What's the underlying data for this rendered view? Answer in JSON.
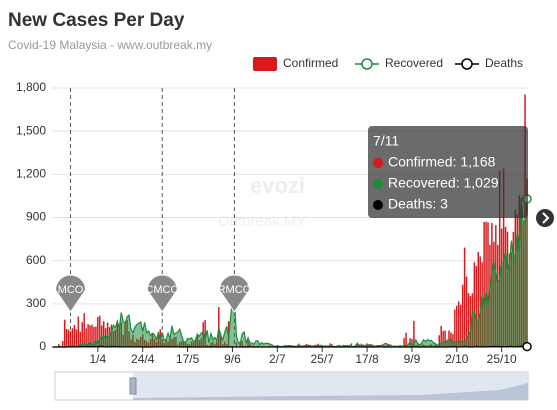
{
  "chart_data": {
    "type": "bar",
    "title": "New Cases Per Day",
    "subtitle": "Covid-19 Malaysia - www.outbreak.my",
    "watermark": [
      "evozi",
      "Outbreak.MY"
    ],
    "categories": [
      null,
      null,
      null,
      null,
      null,
      null,
      null,
      null,
      null,
      null,
      null,
      null,
      null,
      null,
      null,
      null,
      null,
      null,
      null,
      null,
      null,
      null,
      null,
      "1/4",
      null,
      null,
      null,
      null,
      null,
      null,
      null,
      null,
      null,
      null,
      null,
      null,
      null,
      null,
      null,
      null,
      null,
      null,
      null,
      null,
      null,
      null,
      "24/4",
      null,
      null,
      null,
      null,
      null,
      null,
      null,
      null,
      null,
      null,
      null,
      null,
      null,
      null,
      null,
      null,
      null,
      null,
      null,
      null,
      null,
      null,
      "17/5",
      null,
      null,
      null,
      null,
      null,
      null,
      null,
      null,
      null,
      null,
      null,
      null,
      null,
      null,
      null,
      null,
      null,
      null,
      null,
      null,
      null,
      null,
      "9/6",
      null,
      null,
      null,
      null,
      null,
      null,
      null,
      null,
      null,
      null,
      null,
      null,
      null,
      null,
      null,
      null,
      null,
      null,
      null,
      null,
      null,
      null,
      "2/7",
      null,
      null,
      null,
      null,
      null,
      null,
      null,
      null,
      null,
      null,
      null,
      null,
      null,
      null,
      null,
      null,
      null,
      null,
      null,
      null,
      null,
      null,
      "25/7",
      null,
      null,
      null,
      null,
      null,
      null,
      null,
      null,
      null,
      null,
      null,
      null,
      null,
      null,
      null,
      null,
      null,
      null,
      null,
      null,
      null,
      null,
      "17/8",
      null,
      null,
      null,
      null,
      null,
      null,
      null,
      null,
      null,
      null,
      null,
      null,
      null,
      null,
      null,
      null,
      null,
      null,
      null,
      null,
      null,
      null,
      "9/9",
      null,
      null,
      null,
      null,
      null,
      null,
      null,
      null,
      null,
      null,
      null,
      null,
      null,
      null,
      null,
      null,
      null,
      null,
      null,
      null,
      null,
      null,
      "2/10",
      null,
      null,
      null,
      null,
      null,
      null,
      null,
      null,
      null,
      null,
      null,
      null,
      null,
      null,
      null,
      null,
      null,
      null,
      null,
      null,
      null,
      null,
      "25/10",
      null,
      null,
      null,
      null,
      null,
      null,
      null,
      null,
      null,
      null,
      null,
      null,
      null
    ],
    "series": [
      {
        "name": "Confirmed",
        "type": "bar",
        "color": "#d7191c",
        "values": [
          0,
          1,
          0,
          20,
          9,
          41,
          190,
          125,
          120,
          110,
          130,
          153,
          123,
          212,
          106,
          172,
          235,
          130,
          159,
          150,
          156,
          140,
          142,
          208,
          217,
          150,
          179,
          131,
          170,
          138,
          156,
          109,
          118,
          184,
          153,
          170,
          85,
          170,
          187,
          110,
          54,
          84,
          36,
          57,
          50,
          71,
          88,
          51,
          40,
          31,
          57,
          94,
          57,
          36,
          105,
          122,
          55,
          30,
          57,
          39,
          68,
          54,
          67,
          70,
          16,
          37,
          40,
          36,
          39,
          22,
          17,
          37,
          31,
          50,
          78,
          48,
          60,
          172,
          187,
          15,
          10,
          30,
          38,
          20,
          38,
          277,
          93,
          19,
          37,
          19,
          179,
          7,
          8,
          2,
          31,
          4,
          37,
          41,
          8,
          10,
          41,
          21,
          11,
          7,
          6,
          11,
          4,
          6,
          4,
          4,
          3,
          10,
          4,
          0,
          4,
          11,
          3,
          3,
          10,
          14,
          6,
          8,
          13,
          10,
          6,
          7,
          23,
          9,
          8,
          10,
          21,
          15,
          15,
          9,
          13,
          13,
          23,
          13,
          13,
          6,
          2,
          11,
          25,
          20,
          3,
          7,
          12,
          15,
          6,
          15,
          14,
          13,
          15,
          25,
          6,
          15,
          19,
          18,
          23,
          11,
          7,
          25,
          20,
          13,
          16,
          10,
          6,
          12,
          12,
          17,
          10,
          10,
          21,
          2,
          8,
          3,
          7,
          5,
          8,
          9,
          62,
          100,
          5,
          61,
          56,
          182,
          14,
          18,
          8,
          16,
          17,
          12,
          9,
          17,
          18,
          10,
          19,
          13,
          82,
          147,
          111,
          115,
          52,
          115,
          101,
          89,
          260,
          287,
          317,
          293,
          432,
          691,
          489,
          375,
          354,
          374,
          589,
          563,
          660,
          629,
          589,
          869,
          871,
          865,
          710,
          862,
          732,
          847,
          710,
          1228,
          823,
          1240,
          835,
          801,
          649,
          659,
          799,
          957,
          922,
          1054,
          1032,
          869,
          1755,
          1168
        ]
      },
      {
        "name": "Recovered",
        "type": "line",
        "color": "#1e8a3e",
        "values": [
          0,
          0,
          1,
          3,
          2,
          0,
          0,
          0,
          5,
          12,
          14,
          1,
          4,
          8,
          21,
          12,
          25,
          20,
          12,
          34,
          13,
          24,
          44,
          20,
          54,
          72,
          66,
          79,
          58,
          82,
          102,
          152,
          135,
          178,
          128,
          240,
          180,
          162,
          210,
          222,
          122,
          100,
          139,
          157,
          165,
          173,
          108,
          171,
          99,
          111,
          79,
          96,
          86,
          54,
          95,
          48,
          102,
          45,
          55,
          96,
          61,
          148,
          88,
          96,
          106,
          124,
          77,
          37,
          30,
          60,
          54,
          64,
          37,
          47,
          90,
          74,
          96,
          105,
          54,
          117,
          30,
          93,
          51,
          67,
          43,
          134,
          82,
          49,
          100,
          143,
          61,
          198,
          334,
          337,
          79,
          31,
          25,
          93,
          104,
          27,
          64,
          27,
          29,
          18,
          41,
          43,
          16,
          30,
          20,
          25,
          26,
          21,
          16,
          8,
          3,
          9,
          4,
          4,
          1,
          7,
          7,
          10,
          5,
          7,
          4,
          5,
          13,
          7,
          6,
          10,
          9,
          11,
          5,
          4,
          8,
          12,
          3,
          12,
          2,
          6,
          7,
          1,
          8,
          2,
          5,
          2,
          8,
          1,
          5,
          11,
          1,
          7,
          3,
          5,
          1,
          6,
          27,
          7,
          8,
          13,
          11,
          13,
          12,
          17,
          6,
          4,
          10,
          10,
          11,
          13,
          23,
          24,
          6,
          15,
          3,
          7,
          4,
          5,
          9,
          3,
          9,
          9,
          15,
          33,
          14,
          20,
          49,
          24,
          15,
          27,
          50,
          38,
          51,
          44,
          45,
          29,
          25,
          7,
          27,
          28,
          31,
          38,
          40,
          40,
          60,
          24,
          37,
          36,
          39,
          43,
          41,
          41,
          55,
          81,
          109,
          249,
          238,
          181,
          191,
          240,
          365,
          278,
          385,
          292,
          396,
          510,
          596,
          526,
          443,
          469,
          583,
          589,
          662,
          530,
          584,
          739,
          621,
          641,
          806,
          640,
          1036,
          862,
          879,
          1029
        ]
      },
      {
        "name": "Deaths",
        "type": "line",
        "color": "#000000",
        "values": [
          0,
          0,
          0,
          0,
          0,
          0,
          0,
          0,
          2,
          0,
          1,
          1,
          0,
          2,
          4,
          3,
          1,
          4,
          2,
          3,
          2,
          4,
          3,
          2,
          5,
          5,
          2,
          0,
          2,
          1,
          3,
          4,
          3,
          1,
          3,
          0,
          1,
          1,
          1,
          3,
          1,
          0,
          1,
          1,
          1,
          2,
          0,
          0,
          1,
          0,
          0,
          0,
          1,
          1,
          2,
          1,
          1,
          3,
          1,
          0,
          1,
          2,
          0,
          1,
          1,
          0,
          0,
          1,
          0,
          1,
          0,
          1,
          0,
          0,
          0,
          0,
          0,
          0,
          0,
          0,
          0,
          1,
          0,
          0,
          0,
          0,
          0,
          0,
          0,
          1,
          0,
          0,
          0,
          0,
          0,
          0,
          0,
          1,
          0,
          0,
          1,
          0,
          0,
          0,
          0,
          0,
          0,
          0,
          0,
          0,
          0,
          0,
          0,
          0,
          0,
          0,
          0,
          0,
          0,
          0,
          1,
          0,
          0,
          0,
          1,
          0,
          0,
          0,
          0,
          0,
          0,
          0,
          0,
          0,
          0,
          0,
          0,
          0,
          0,
          0,
          0,
          0,
          0,
          0,
          0,
          0,
          0,
          0,
          0,
          0,
          0,
          0,
          0,
          0,
          0,
          0,
          0,
          0,
          0,
          0,
          0,
          0,
          0,
          0,
          0,
          0,
          1,
          0,
          1,
          0,
          0,
          0,
          0,
          0,
          0,
          0,
          0,
          0,
          0,
          0,
          0,
          1,
          0,
          0,
          0,
          0,
          0,
          0,
          0,
          0,
          0,
          0,
          0,
          0,
          0,
          0,
          0,
          0,
          1,
          0,
          0,
          0,
          0,
          0,
          1,
          1,
          3,
          0,
          1,
          1,
          1,
          2,
          2,
          1,
          0,
          0,
          1,
          4,
          1,
          3,
          0,
          1,
          2,
          1,
          3,
          3,
          3,
          4,
          4,
          3,
          3,
          2,
          1,
          4,
          4,
          5,
          1,
          2,
          4,
          3,
          6,
          5,
          4,
          3
        ]
      }
    ],
    "ylim": [
      0,
      1800
    ],
    "yticks": [
      0,
      300,
      600,
      900,
      {
        "value": 1200,
        "label": "1,200"
      },
      {
        "value": 1500,
        "label": "1,500"
      },
      {
        "value": 1800,
        "label": "1,800"
      }
    ],
    "grid": true,
    "legend": "top-right",
    "markers": [
      "MCO",
      "CMCO",
      "RMCO"
    ],
    "tooltip": {
      "title": "7/11",
      "lines": [
        "Confirmed: 1,168",
        "Recovered: 1,029",
        "Deaths: 3"
      ]
    }
  }
}
